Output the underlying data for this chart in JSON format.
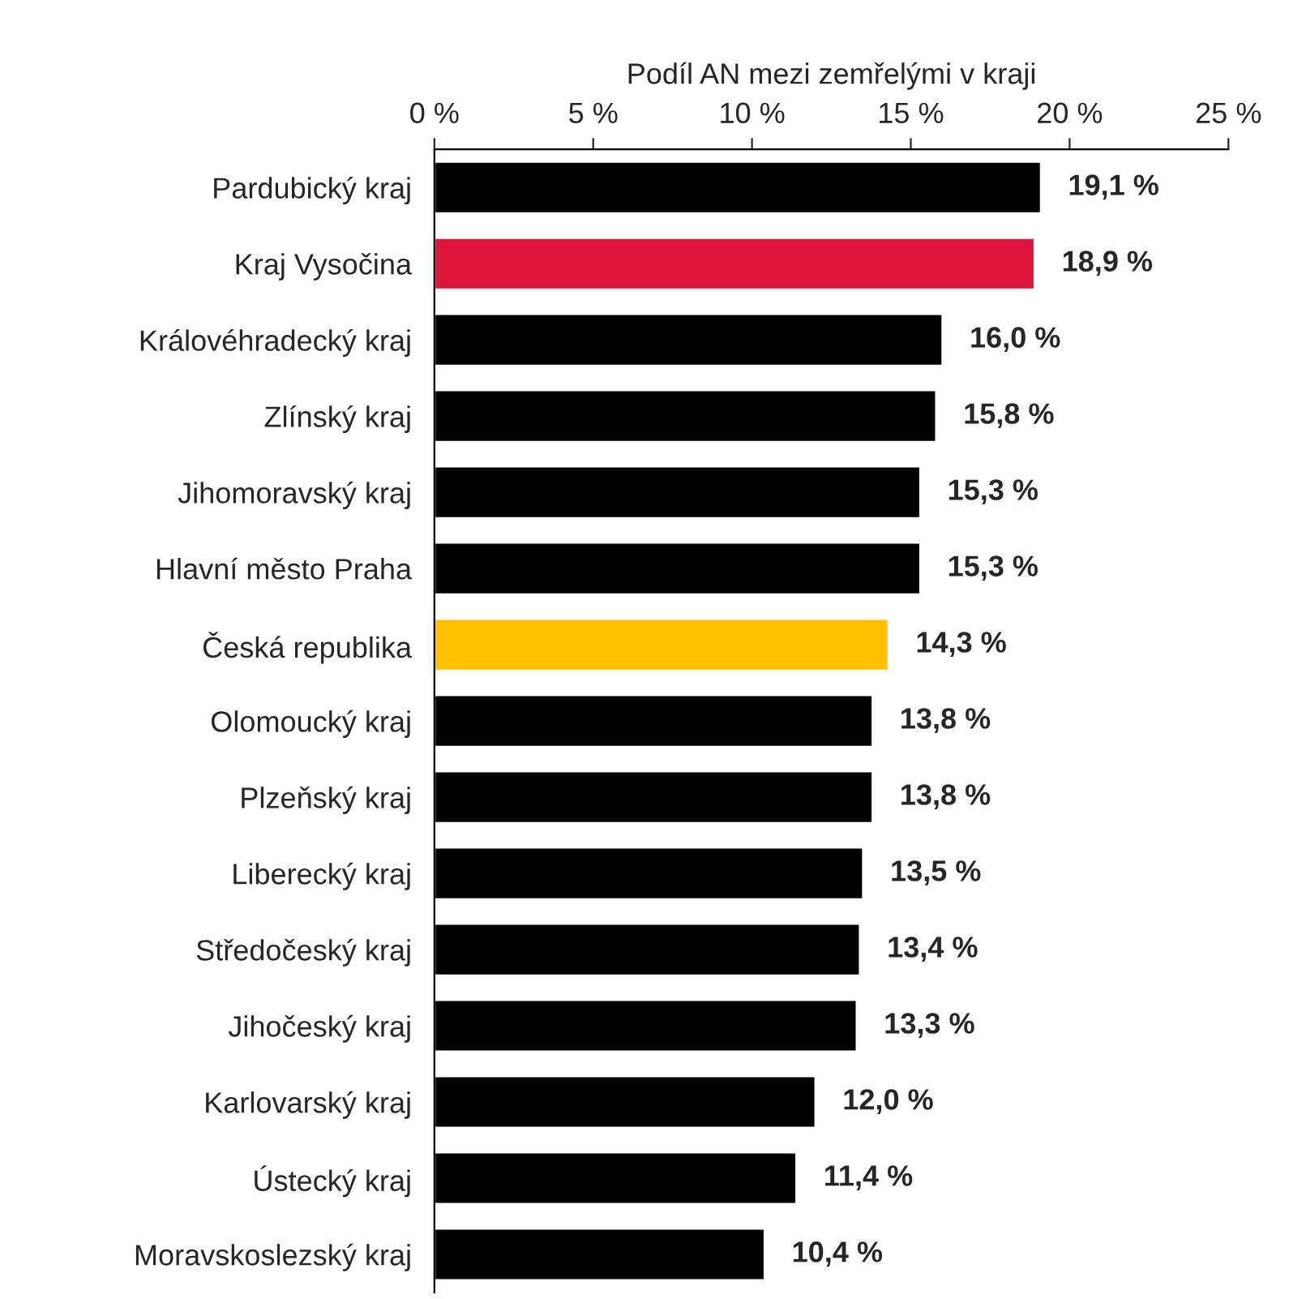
{
  "chart_data": {
    "type": "bar",
    "orientation": "horizontal",
    "xlabel": "Podíl AN mezi zemřelými v kraji",
    "categories": [
      "Pardubický kraj",
      "Kraj Vysočina",
      "Královéhradecký kraj",
      "Zlínský kraj",
      "Jihomoravský kraj",
      "Hlavní město Praha",
      "Česká republika",
      "Olomoucký kraj",
      "Plzeňský kraj",
      "Liberecký kraj",
      "Středočeský kraj",
      "Jihočeský kraj",
      "Karlovarský kraj",
      "Ústecký kraj",
      "Moravskoslezský kraj"
    ],
    "values": [
      19.1,
      18.9,
      16.0,
      15.8,
      15.3,
      15.3,
      14.3,
      13.8,
      13.8,
      13.5,
      13.4,
      13.3,
      12.0,
      11.4,
      10.4
    ],
    "value_labels": [
      "19,1 %",
      "18,9 %",
      "16,0 %",
      "15,8 %",
      "15,3 %",
      "15,3 %",
      "14,3 %",
      "13,8 %",
      "13,8 %",
      "13,5 %",
      "13,4 %",
      "13,3 %",
      "12,0 %",
      "11,4 %",
      "10,4 %"
    ],
    "colors": [
      "#000000",
      "#dc143c",
      "#000000",
      "#000000",
      "#000000",
      "#000000",
      "#ffc000",
      "#000000",
      "#000000",
      "#000000",
      "#000000",
      "#000000",
      "#000000",
      "#000000",
      "#000000"
    ],
    "xlim": [
      0,
      25
    ],
    "xticks": [
      {
        "value": 0,
        "label": "0 %"
      },
      {
        "value": 5,
        "label": "5 %"
      },
      {
        "value": 10,
        "label": "10 %"
      },
      {
        "value": 15,
        "label": "15 %"
      },
      {
        "value": 20,
        "label": "20 %"
      },
      {
        "value": 25,
        "label": "25 %"
      }
    ],
    "grid": false,
    "legend": false
  }
}
